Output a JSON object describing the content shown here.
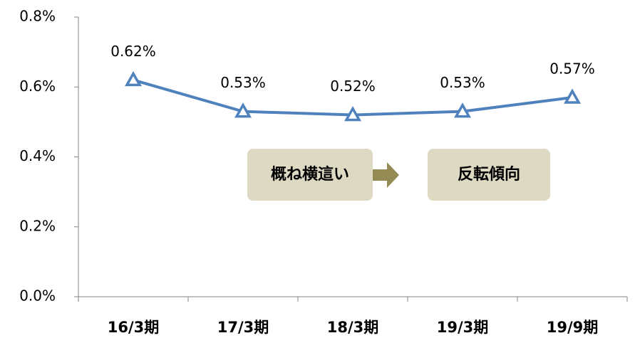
{
  "chart_data": {
    "type": "line",
    "categories": [
      "16/3期",
      "17/3期",
      "18/3期",
      "19/3期",
      "19/9期"
    ],
    "series": [
      {
        "color": "#4f81bd",
        "values": [
          0.62,
          0.53,
          0.52,
          0.53,
          0.57
        ],
        "value_labels": [
          "0.62%",
          "0.53%",
          "0.52%",
          "0.53%",
          "0.57%"
        ]
      }
    ],
    "ylim": [
      0,
      0.8
    ],
    "yticks": [
      {
        "value": 0,
        "label": "0.0%"
      },
      {
        "value": 0.2,
        "label": "0.2%"
      },
      {
        "value": 0.4,
        "label": "0.4%"
      },
      {
        "value": 0.6,
        "label": "0.6%"
      },
      {
        "value": 0.8,
        "label": "0.8%"
      }
    ],
    "grid": false,
    "annotations": [
      "概ね横這い",
      "反転傾向"
    ]
  }
}
